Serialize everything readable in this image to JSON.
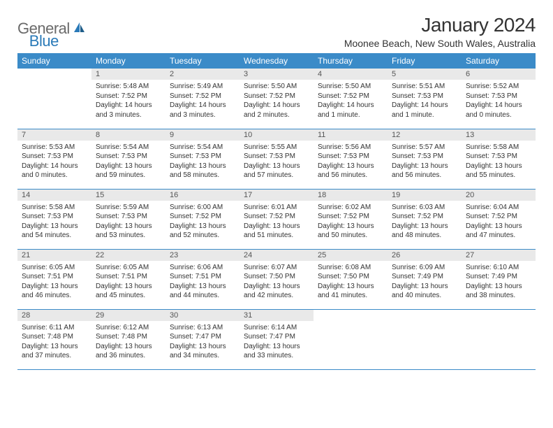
{
  "logo": {
    "text_general": "General",
    "text_blue": "Blue"
  },
  "title": "January 2024",
  "location": "Moonee Beach, New South Wales, Australia",
  "colors": {
    "header_bg": "#3b8bc8",
    "header_text": "#ffffff",
    "daynum_bg": "#e9e9e9",
    "daynum_text": "#555555",
    "body_text": "#333333",
    "rule": "#3b8bc8",
    "logo_gray": "#6a6a6a",
    "logo_blue": "#2a7ab8"
  },
  "weekdays": [
    "Sunday",
    "Monday",
    "Tuesday",
    "Wednesday",
    "Thursday",
    "Friday",
    "Saturday"
  ],
  "start_offset": 1,
  "days": [
    {
      "n": 1,
      "sunrise": "5:48 AM",
      "sunset": "7:52 PM",
      "daylight": "14 hours and 3 minutes."
    },
    {
      "n": 2,
      "sunrise": "5:49 AM",
      "sunset": "7:52 PM",
      "daylight": "14 hours and 3 minutes."
    },
    {
      "n": 3,
      "sunrise": "5:50 AM",
      "sunset": "7:52 PM",
      "daylight": "14 hours and 2 minutes."
    },
    {
      "n": 4,
      "sunrise": "5:50 AM",
      "sunset": "7:52 PM",
      "daylight": "14 hours and 1 minute."
    },
    {
      "n": 5,
      "sunrise": "5:51 AM",
      "sunset": "7:53 PM",
      "daylight": "14 hours and 1 minute."
    },
    {
      "n": 6,
      "sunrise": "5:52 AM",
      "sunset": "7:53 PM",
      "daylight": "14 hours and 0 minutes."
    },
    {
      "n": 7,
      "sunrise": "5:53 AM",
      "sunset": "7:53 PM",
      "daylight": "14 hours and 0 minutes."
    },
    {
      "n": 8,
      "sunrise": "5:54 AM",
      "sunset": "7:53 PM",
      "daylight": "13 hours and 59 minutes."
    },
    {
      "n": 9,
      "sunrise": "5:54 AM",
      "sunset": "7:53 PM",
      "daylight": "13 hours and 58 minutes."
    },
    {
      "n": 10,
      "sunrise": "5:55 AM",
      "sunset": "7:53 PM",
      "daylight": "13 hours and 57 minutes."
    },
    {
      "n": 11,
      "sunrise": "5:56 AM",
      "sunset": "7:53 PM",
      "daylight": "13 hours and 56 minutes."
    },
    {
      "n": 12,
      "sunrise": "5:57 AM",
      "sunset": "7:53 PM",
      "daylight": "13 hours and 56 minutes."
    },
    {
      "n": 13,
      "sunrise": "5:58 AM",
      "sunset": "7:53 PM",
      "daylight": "13 hours and 55 minutes."
    },
    {
      "n": 14,
      "sunrise": "5:58 AM",
      "sunset": "7:53 PM",
      "daylight": "13 hours and 54 minutes."
    },
    {
      "n": 15,
      "sunrise": "5:59 AM",
      "sunset": "7:53 PM",
      "daylight": "13 hours and 53 minutes."
    },
    {
      "n": 16,
      "sunrise": "6:00 AM",
      "sunset": "7:52 PM",
      "daylight": "13 hours and 52 minutes."
    },
    {
      "n": 17,
      "sunrise": "6:01 AM",
      "sunset": "7:52 PM",
      "daylight": "13 hours and 51 minutes."
    },
    {
      "n": 18,
      "sunrise": "6:02 AM",
      "sunset": "7:52 PM",
      "daylight": "13 hours and 50 minutes."
    },
    {
      "n": 19,
      "sunrise": "6:03 AM",
      "sunset": "7:52 PM",
      "daylight": "13 hours and 48 minutes."
    },
    {
      "n": 20,
      "sunrise": "6:04 AM",
      "sunset": "7:52 PM",
      "daylight": "13 hours and 47 minutes."
    },
    {
      "n": 21,
      "sunrise": "6:05 AM",
      "sunset": "7:51 PM",
      "daylight": "13 hours and 46 minutes."
    },
    {
      "n": 22,
      "sunrise": "6:05 AM",
      "sunset": "7:51 PM",
      "daylight": "13 hours and 45 minutes."
    },
    {
      "n": 23,
      "sunrise": "6:06 AM",
      "sunset": "7:51 PM",
      "daylight": "13 hours and 44 minutes."
    },
    {
      "n": 24,
      "sunrise": "6:07 AM",
      "sunset": "7:50 PM",
      "daylight": "13 hours and 42 minutes."
    },
    {
      "n": 25,
      "sunrise": "6:08 AM",
      "sunset": "7:50 PM",
      "daylight": "13 hours and 41 minutes."
    },
    {
      "n": 26,
      "sunrise": "6:09 AM",
      "sunset": "7:49 PM",
      "daylight": "13 hours and 40 minutes."
    },
    {
      "n": 27,
      "sunrise": "6:10 AM",
      "sunset": "7:49 PM",
      "daylight": "13 hours and 38 minutes."
    },
    {
      "n": 28,
      "sunrise": "6:11 AM",
      "sunset": "7:48 PM",
      "daylight": "13 hours and 37 minutes."
    },
    {
      "n": 29,
      "sunrise": "6:12 AM",
      "sunset": "7:48 PM",
      "daylight": "13 hours and 36 minutes."
    },
    {
      "n": 30,
      "sunrise": "6:13 AM",
      "sunset": "7:47 PM",
      "daylight": "13 hours and 34 minutes."
    },
    {
      "n": 31,
      "sunrise": "6:14 AM",
      "sunset": "7:47 PM",
      "daylight": "13 hours and 33 minutes."
    }
  ],
  "labels": {
    "sunrise": "Sunrise:",
    "sunset": "Sunset:",
    "daylight": "Daylight:"
  }
}
